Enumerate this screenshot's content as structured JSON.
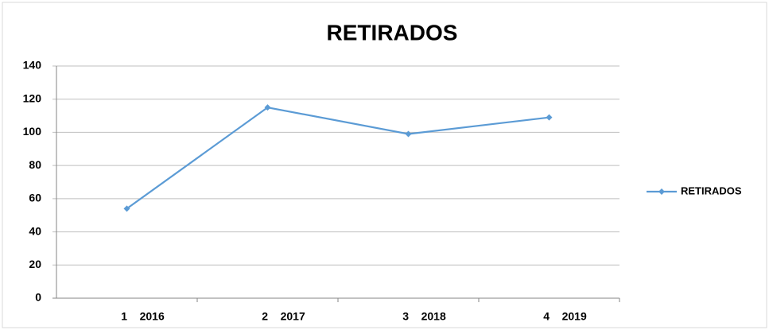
{
  "chart_data": {
    "type": "line",
    "title": "RETIRADOS",
    "categories": [
      "1    2016",
      "2    2017",
      "3    2018",
      "4    2019"
    ],
    "series": [
      {
        "name": "RETIRADOS",
        "color": "#5b9bd5",
        "values": [
          54,
          115,
          99,
          109
        ]
      }
    ],
    "ylim": [
      0,
      140
    ],
    "yticks": [
      0,
      20,
      40,
      60,
      80,
      100,
      120,
      140
    ],
    "grid": true,
    "legend": "right"
  }
}
